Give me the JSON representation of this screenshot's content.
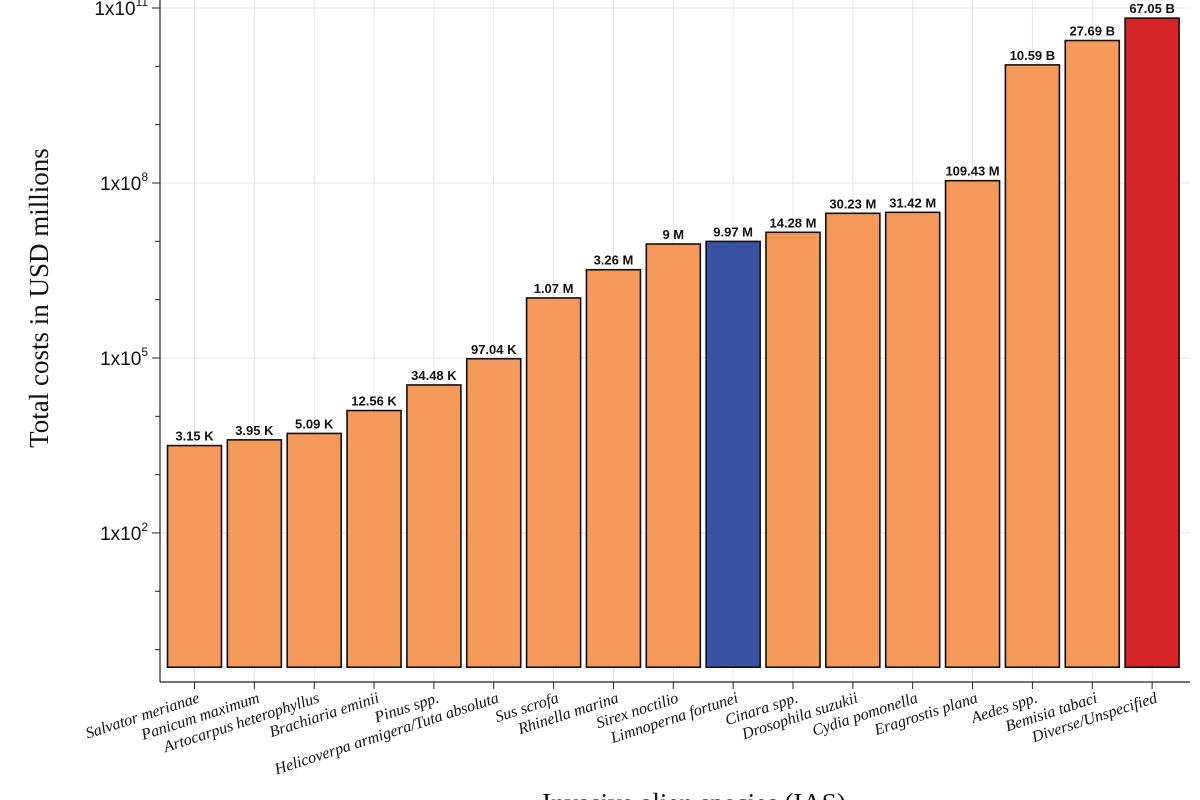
{
  "chart_data": {
    "type": "bar",
    "title": "",
    "xlabel": "Invasive alien species (IAS)",
    "ylabel": "Total costs in USD millions",
    "yscale": "log",
    "ylim": [
      0.5,
      100000000000
    ],
    "yticks": [
      {
        "value": 100,
        "base": "1x10",
        "exp": "2"
      },
      {
        "value": 100000,
        "base": "1x10",
        "exp": "5"
      },
      {
        "value": 100000000,
        "base": "1x10",
        "exp": "8"
      },
      {
        "value": 100000000000,
        "base": "1x10",
        "exp": "11"
      }
    ],
    "grid": true,
    "categories": [
      "Salvator merianae",
      "Panicum maximum",
      "Artocarpus heterophyllus",
      "Brachiaria eminii",
      "Pinus spp.",
      "Helicoverpa armigera/Tuta absoluta",
      "Sus scrofa",
      "Rhinella marina",
      "Sirex noctilio",
      "Limnoperna fortunei",
      "Cinara spp.",
      "Drosophila suzukii",
      "Cydia pomonella",
      "Eragrostis plana",
      "Aedes spp.",
      "Bemisia tabaci",
      "Diverse/Unspecified"
    ],
    "values": [
      3150,
      3950,
      5090,
      12560,
      34480,
      97040,
      1070000,
      3260000,
      9000000,
      9970000,
      14280000,
      30230000,
      31420000,
      109430000,
      10590000000,
      27690000000,
      67050000000
    ],
    "data_labels": [
      "3.15 K",
      "3.95 K",
      "5.09 K",
      "12.56 K",
      "34.48 K",
      "97.04 K",
      "1.07 M",
      "3.26 M",
      "9 M",
      "9.97 M",
      "14.28 M",
      "30.23 M",
      "31.42 M",
      "109.43 M",
      "10.59 B",
      "27.69 B",
      "67.05 B"
    ],
    "colors": {
      "default": "#F4995A",
      "highlight": "#3A52A3",
      "last": "#D42428",
      "grid": "#e3e3e3"
    },
    "highlight_index": 9
  }
}
